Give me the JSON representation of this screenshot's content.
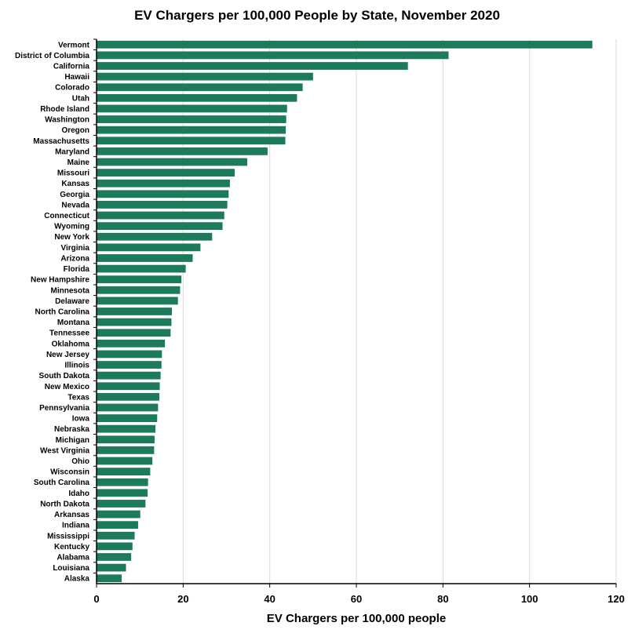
{
  "chart_data": {
    "type": "bar",
    "orientation": "horizontal",
    "title": "EV Chargers per 100,000 People by State, November 2020",
    "xlabel": "EV Chargers per 100,000 people",
    "ylabel": "",
    "xlim": [
      0,
      120
    ],
    "x_ticks": [
      0,
      20,
      40,
      60,
      80,
      100,
      120
    ],
    "grid": "vertical",
    "bar_color": "#1e7a5c",
    "categories": [
      "Vermont",
      "District of Columbia",
      "California",
      "Hawaii",
      "Colorado",
      "Utah",
      "Rhode Island",
      "Washington",
      "Oregon",
      "Massachusetts",
      "Maryland",
      "Maine",
      "Missouri",
      "Kansas",
      "Georgia",
      "Nevada",
      "Connecticut",
      "Wyoming",
      "New York",
      "Virginia",
      "Arizona",
      "Florida",
      "New Hampshire",
      "Minnesota",
      "Delaware",
      "North Carolina",
      "Montana",
      "Tennessee",
      "Oklahoma",
      "New Jersey",
      "Illinois",
      "South Dakota",
      "New Mexico",
      "Texas",
      "Pennsylvania",
      "Iowa",
      "Nebraska",
      "Michigan",
      "West Virginia",
      "Ohio",
      "Wisconsin",
      "South Carolina",
      "Idaho",
      "North Dakota",
      "Arkansas",
      "Indiana",
      "Mississippi",
      "Kentucky",
      "Alabama",
      "Louisiana",
      "Alaska"
    ],
    "values": [
      114.5,
      81.3,
      71.9,
      50.0,
      47.6,
      46.3,
      44.0,
      43.8,
      43.7,
      43.6,
      39.5,
      34.8,
      31.9,
      30.8,
      30.5,
      30.2,
      29.5,
      29.1,
      26.7,
      24.0,
      22.2,
      20.6,
      19.6,
      19.3,
      18.8,
      17.4,
      17.3,
      17.1,
      15.8,
      15.1,
      15.0,
      14.8,
      14.6,
      14.5,
      14.2,
      14.0,
      13.6,
      13.4,
      13.3,
      12.9,
      12.4,
      11.9,
      11.8,
      11.3,
      10.1,
      9.6,
      8.8,
      8.3,
      8.0,
      6.8,
      5.8
    ]
  }
}
